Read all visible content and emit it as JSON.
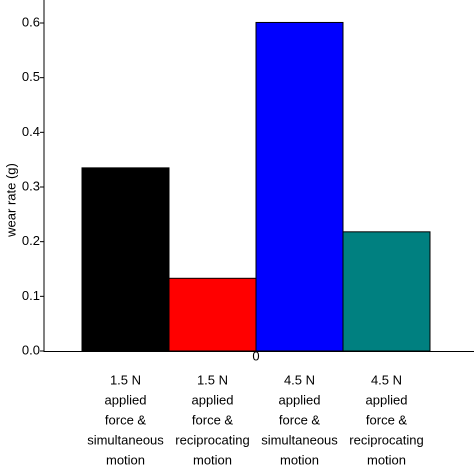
{
  "chart_data": {
    "type": "bar",
    "ylabel": "wear rate (g)",
    "xlabel": "0",
    "categories": [
      [
        "1.5 N",
        "applied",
        "force &",
        "simultaneous",
        "motion"
      ],
      [
        "1.5 N",
        "applied",
        "force &",
        "reciprocating",
        "motion"
      ],
      [
        "4.5 N",
        "applied",
        "force &",
        "simultaneous",
        "motion"
      ],
      [
        "4.5 N",
        "applied",
        "force &",
        "reciprocating",
        "motion"
      ]
    ],
    "values": [
      0.335,
      0.133,
      0.601,
      0.218
    ],
    "colors": [
      "#000000",
      "#ff0000",
      "#0000ff",
      "#008080"
    ],
    "ylim": [
      0,
      0.631
    ],
    "yticks": [
      {
        "value": 0,
        "label": "0.0"
      },
      0.1,
      0.2,
      0.3,
      0.4,
      0.5,
      0.6
    ]
  }
}
